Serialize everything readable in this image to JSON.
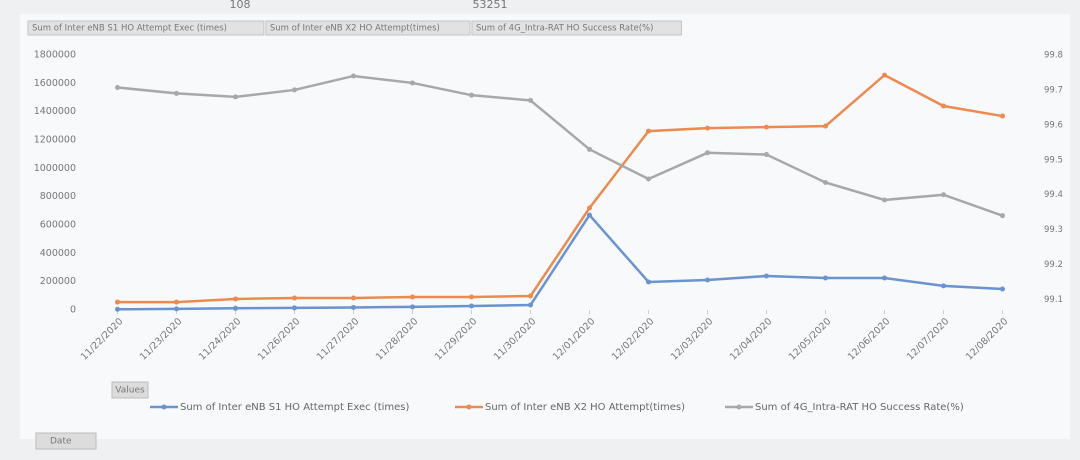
{
  "chart_data": {
    "type": "line",
    "categories": [
      "11/22/2020",
      "11/23/2020",
      "11/24/2020",
      "11/26/2020",
      "11/27/2020",
      "11/28/2020",
      "11/29/2020",
      "11/30/2020",
      "12/01/2020",
      "12/02/2020",
      "12/03/2020",
      "12/04/2020",
      "12/05/2020",
      "12/06/2020",
      "12/07/2020",
      "12/08/2020"
    ],
    "series": [
      {
        "name": "Sum of Inter eNB S1 HO Attempt Exec (times)",
        "color": "#6a93cf",
        "values": [
          5000,
          8000,
          12000,
          15000,
          18000,
          22000,
          28000,
          35000,
          670000,
          198000,
          212000,
          240000,
          226000,
          226000,
          170000,
          148000
        ]
      },
      {
        "name": "Sum of Inter eNB X2 HO Attempt(times)",
        "color": "#ec8a4f",
        "values": [
          56000,
          56000,
          78000,
          85000,
          85000,
          92000,
          92000,
          99000,
          720000,
          1263000,
          1284000,
          1291000,
          1298000,
          1658000,
          1440000,
          1369000
        ]
      },
      {
        "name": "Sum of 4G_Intra-RAT HO Success Rate(%)",
        "color": "#a8a8a8",
        "axis": "y2",
        "values": [
          99.707,
          99.69,
          99.68,
          99.7,
          99.74,
          99.72,
          99.685,
          99.67,
          99.53,
          99.445,
          99.52,
          99.515,
          99.435,
          99.385,
          99.4,
          99.34
        ]
      }
    ],
    "ylim": [
      0,
      1800000
    ],
    "yticks": [
      0,
      200000,
      400000,
      600000,
      800000,
      1000000,
      1200000,
      1400000,
      1600000,
      1800000
    ],
    "y2lim": [
      99.07,
      99.8
    ],
    "y2ticks": [
      99.1,
      99.2,
      99.3,
      99.4,
      99.5,
      99.6,
      99.7,
      99.8
    ],
    "grid": false,
    "legend": "bottom"
  },
  "pivot": {
    "values_button": "Values",
    "axis_button": "Date",
    "top_cells": [
      "108",
      "53251"
    ]
  }
}
